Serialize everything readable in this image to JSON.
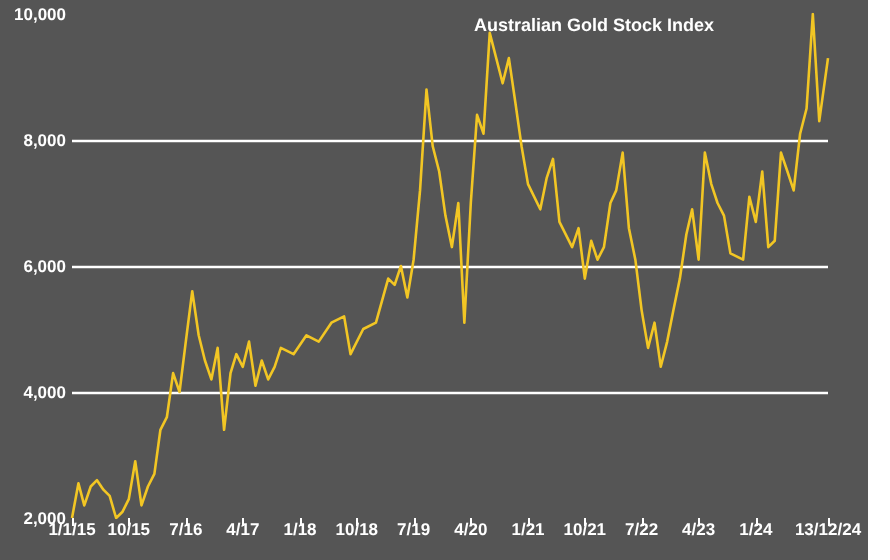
{
  "chart_data": {
    "type": "line",
    "title": "Australian Gold Stock Index",
    "x": [
      "2015-01",
      "2015-02",
      "2015-03",
      "2015-04",
      "2015-05",
      "2015-06",
      "2015-07",
      "2015-08",
      "2015-09",
      "2015-10",
      "2015-11",
      "2015-12",
      "2016-01",
      "2016-02",
      "2016-03",
      "2016-04",
      "2016-05",
      "2016-06",
      "2016-07",
      "2016-08",
      "2016-09",
      "2016-10",
      "2016-11",
      "2016-12",
      "2017-01",
      "2017-02",
      "2017-03",
      "2017-04",
      "2017-05",
      "2017-06",
      "2017-07",
      "2017-08",
      "2017-09",
      "2017-10",
      "2017-12",
      "2018-02",
      "2018-04",
      "2018-06",
      "2018-08",
      "2018-09",
      "2018-11",
      "2019-01",
      "2019-03",
      "2019-04",
      "2019-05",
      "2019-06",
      "2019-07",
      "2019-08",
      "2019-09",
      "2019-10",
      "2019-11",
      "2019-12",
      "2020-01",
      "2020-02",
      "2020-03",
      "2020-04",
      "2020-05",
      "2020-06",
      "2020-07",
      "2020-09",
      "2020-10",
      "2020-11",
      "2020-12",
      "2021-01",
      "2021-03",
      "2021-04",
      "2021-05",
      "2021-06",
      "2021-08",
      "2021-09",
      "2021-10",
      "2021-11",
      "2021-12",
      "2022-01",
      "2022-02",
      "2022-03",
      "2022-04",
      "2022-05",
      "2022-06",
      "2022-07",
      "2022-08",
      "2022-09",
      "2022-10",
      "2022-11",
      "2022-12",
      "2023-01",
      "2023-02",
      "2023-03",
      "2023-04",
      "2023-05",
      "2023-06",
      "2023-07",
      "2023-08",
      "2023-09",
      "2023-11",
      "2023-12",
      "2024-01",
      "2024-02",
      "2024-03",
      "2024-04",
      "2024-05",
      "2024-06",
      "2024-07",
      "2024-08",
      "2024-09",
      "2024-10",
      "2024-11",
      "2024-12-13"
    ],
    "series": [
      {
        "color": "#f2c624",
        "values": [
          2000,
          2550,
          2200,
          2500,
          2600,
          2450,
          2350,
          2000,
          2100,
          2300,
          2900,
          2200,
          2500,
          2700,
          3400,
          3600,
          4300,
          4000,
          4800,
          5600,
          4900,
          4500,
          4200,
          4700,
          3400,
          4300,
          4600,
          4400,
          4800,
          4100,
          4500,
          4200,
          4400,
          4700,
          4600,
          4900,
          4800,
          5100,
          5200,
          4600,
          5000,
          5100,
          5800,
          5700,
          6000,
          5500,
          6100,
          7200,
          8800,
          7900,
          7500,
          6800,
          6300,
          7000,
          5100,
          7000,
          8400,
          8100,
          9700,
          8900,
          9300,
          8600,
          7900,
          7300,
          6900,
          7400,
          7700,
          6700,
          6300,
          6600,
          5800,
          6400,
          6100,
          6300,
          7000,
          7200,
          7800,
          6600,
          6100,
          5300,
          4700,
          5100,
          4400,
          4800,
          5300,
          5800,
          6500,
          6900,
          6100,
          7800,
          7300,
          7000,
          6800,
          6200,
          6100,
          7100,
          6700,
          7500,
          6300,
          6400,
          7800,
          7500,
          7200,
          8100,
          8500,
          10000,
          8300,
          9300
        ]
      }
    ],
    "xlim": [
      "2015-01-01",
      "2024-12-13"
    ],
    "xticks": [
      {
        "value": "2015-01-01",
        "label": "1/1/15"
      },
      {
        "value": "2015-10-01",
        "label": "10/15"
      },
      {
        "value": "2016-07-01",
        "label": "7/16"
      },
      {
        "value": "2017-04-01",
        "label": "4/17"
      },
      {
        "value": "2018-01-01",
        "label": "1/18"
      },
      {
        "value": "2018-10-01",
        "label": "10/18"
      },
      {
        "value": "2019-07-01",
        "label": "7/19"
      },
      {
        "value": "2020-04-01",
        "label": "4/20"
      },
      {
        "value": "2021-01-01",
        "label": "1/21"
      },
      {
        "value": "2021-10-01",
        "label": "10/21"
      },
      {
        "value": "2022-07-01",
        "label": "7/22"
      },
      {
        "value": "2023-04-01",
        "label": "4/23"
      },
      {
        "value": "2024-01-01",
        "label": "1/24"
      },
      {
        "value": "2024-12-13",
        "label": "13/12/24"
      }
    ],
    "ylim": [
      2000,
      10000
    ],
    "yticks": [
      {
        "value": 2000,
        "label": "2,000"
      },
      {
        "value": 4000,
        "label": "4,000"
      },
      {
        "value": 6000,
        "label": "6,000"
      },
      {
        "value": 8000,
        "label": "8,000"
      },
      {
        "value": 10000,
        "label": "10,000"
      }
    ],
    "grid": "y",
    "marker": "none",
    "line_style": "solid"
  }
}
